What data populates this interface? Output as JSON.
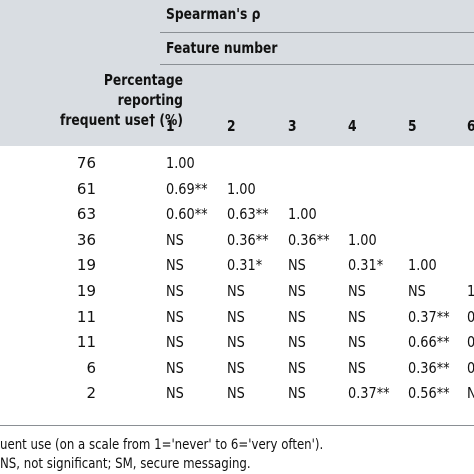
{
  "header": {
    "statistic": "Spearman's ρ",
    "feature_number": "Feature number",
    "pct_lines": [
      "Percentage",
      "reporting",
      "frequent use† (%)"
    ],
    "columns": [
      "1",
      "2",
      "3",
      "4",
      "5",
      "6"
    ]
  },
  "rows": [
    {
      "pct": "76",
      "cells": [
        "1.00",
        "",
        "",
        "",
        "",
        ""
      ]
    },
    {
      "pct": "61",
      "cells": [
        "0.69**",
        "1.00",
        "",
        "",
        "",
        ""
      ]
    },
    {
      "pct": "63",
      "cells": [
        "0.60**",
        "0.63**",
        "1.00",
        "",
        "",
        ""
      ]
    },
    {
      "pct": "36",
      "cells": [
        "NS",
        "0.36**",
        "0.36**",
        "1.00",
        "",
        ""
      ]
    },
    {
      "pct": "19",
      "cells": [
        "NS",
        "0.31*",
        "NS",
        "0.31*",
        "1.00",
        ""
      ]
    },
    {
      "pct": "19",
      "cells": [
        "NS",
        "NS",
        "NS",
        "NS",
        "NS",
        "1"
      ]
    },
    {
      "pct": "11",
      "cells": [
        "NS",
        "NS",
        "NS",
        "NS",
        "0.37**",
        "0"
      ]
    },
    {
      "pct": "11",
      "cells": [
        "NS",
        "NS",
        "NS",
        "NS",
        "0.66**",
        "0"
      ]
    },
    {
      "pct": "6",
      "cells": [
        "NS",
        "NS",
        "NS",
        "NS",
        "0.36**",
        "0"
      ]
    },
    {
      "pct": "2",
      "cells": [
        "NS",
        "NS",
        "NS",
        "0.37**",
        "0.56**",
        "N"
      ]
    }
  ],
  "footnotes": [
    "uent use (on a scale from 1='never' to 6='very often').",
    "NS, not significant; SM, secure messaging."
  ]
}
